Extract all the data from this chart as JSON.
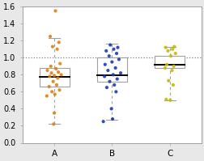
{
  "background_color": "#e8e8e8",
  "plot_bg_color": "#ffffff",
  "ylim": [
    0.0,
    1.6
  ],
  "yticks": [
    0.0,
    0.2,
    0.4,
    0.6,
    0.8,
    1.0,
    1.2,
    1.4,
    1.6
  ],
  "hline_y": 1.0,
  "categories": [
    "A",
    "B",
    "C"
  ],
  "box_A": {
    "q1": 0.665,
    "median": 0.775,
    "q3": 0.875,
    "whisker_low": 0.225,
    "whisker_high": 1.23
  },
  "box_B": {
    "q1": 0.72,
    "median": 0.79,
    "q3": 1.0,
    "whisker_low": 0.27,
    "whisker_high": 1.16
  },
  "box_C": {
    "q1": 0.875,
    "median": 0.92,
    "q3": 1.02,
    "whisker_low": 0.5,
    "whisker_high": 1.13
  },
  "dots_A_y": [
    1.55,
    1.25,
    1.18,
    1.13,
    1.1,
    0.93,
    0.9,
    0.87,
    0.85,
    0.83,
    0.82,
    0.8,
    0.79,
    0.78,
    0.76,
    0.72,
    0.68,
    0.66,
    0.62,
    0.6,
    0.57,
    0.55,
    0.35,
    0.22
  ],
  "dots_A_x": [
    1.02,
    0.93,
    1.08,
    0.97,
    1.05,
    1.1,
    0.94,
    1.03,
    0.88,
    1.07,
    0.95,
    1.12,
    1.0,
    0.92,
    1.06,
    0.98,
    1.04,
    0.91,
    1.09,
    0.96,
    1.01,
    0.87,
    1.0,
    0.99
  ],
  "dots_B_y": [
    1.15,
    1.12,
    1.1,
    1.08,
    1.05,
    1.02,
    0.98,
    0.95,
    0.92,
    0.88,
    0.85,
    0.82,
    0.8,
    0.78,
    0.75,
    0.72,
    0.68,
    0.65,
    0.6,
    0.4,
    0.28,
    0.25
  ],
  "dots_B_x": [
    1.97,
    2.1,
    2.03,
    1.9,
    2.08,
    1.95,
    2.12,
    2.0,
    1.88,
    2.06,
    1.93,
    2.15,
    2.02,
    1.87,
    2.09,
    1.96,
    2.04,
    1.91,
    2.07,
    1.99,
    2.01,
    1.85
  ],
  "dots_C_y": [
    1.13,
    1.12,
    1.1,
    1.08,
    1.05,
    1.02,
    0.92,
    0.9,
    0.88,
    0.85,
    0.73,
    0.68,
    0.51,
    0.5
  ],
  "dots_C_x": [
    3.08,
    2.93,
    3.05,
    2.97,
    3.1,
    3.02,
    2.95,
    3.07,
    2.92,
    3.04,
    2.98,
    3.06,
    2.94,
    3.01
  ],
  "dot_color_A": "#e08010",
  "dot_color_B": "#1a3ab8",
  "dot_color_C": "#c8b800",
  "box_edge_color": "#a0a0a0",
  "median_color": "#000000",
  "whisker_color": "#a0a0a0",
  "spine_color": "#a0a0a0",
  "dot_size": 9,
  "dot_alpha": 0.9,
  "box_width": 0.52,
  "figsize": [
    2.53,
    1.99
  ],
  "dpi": 100
}
